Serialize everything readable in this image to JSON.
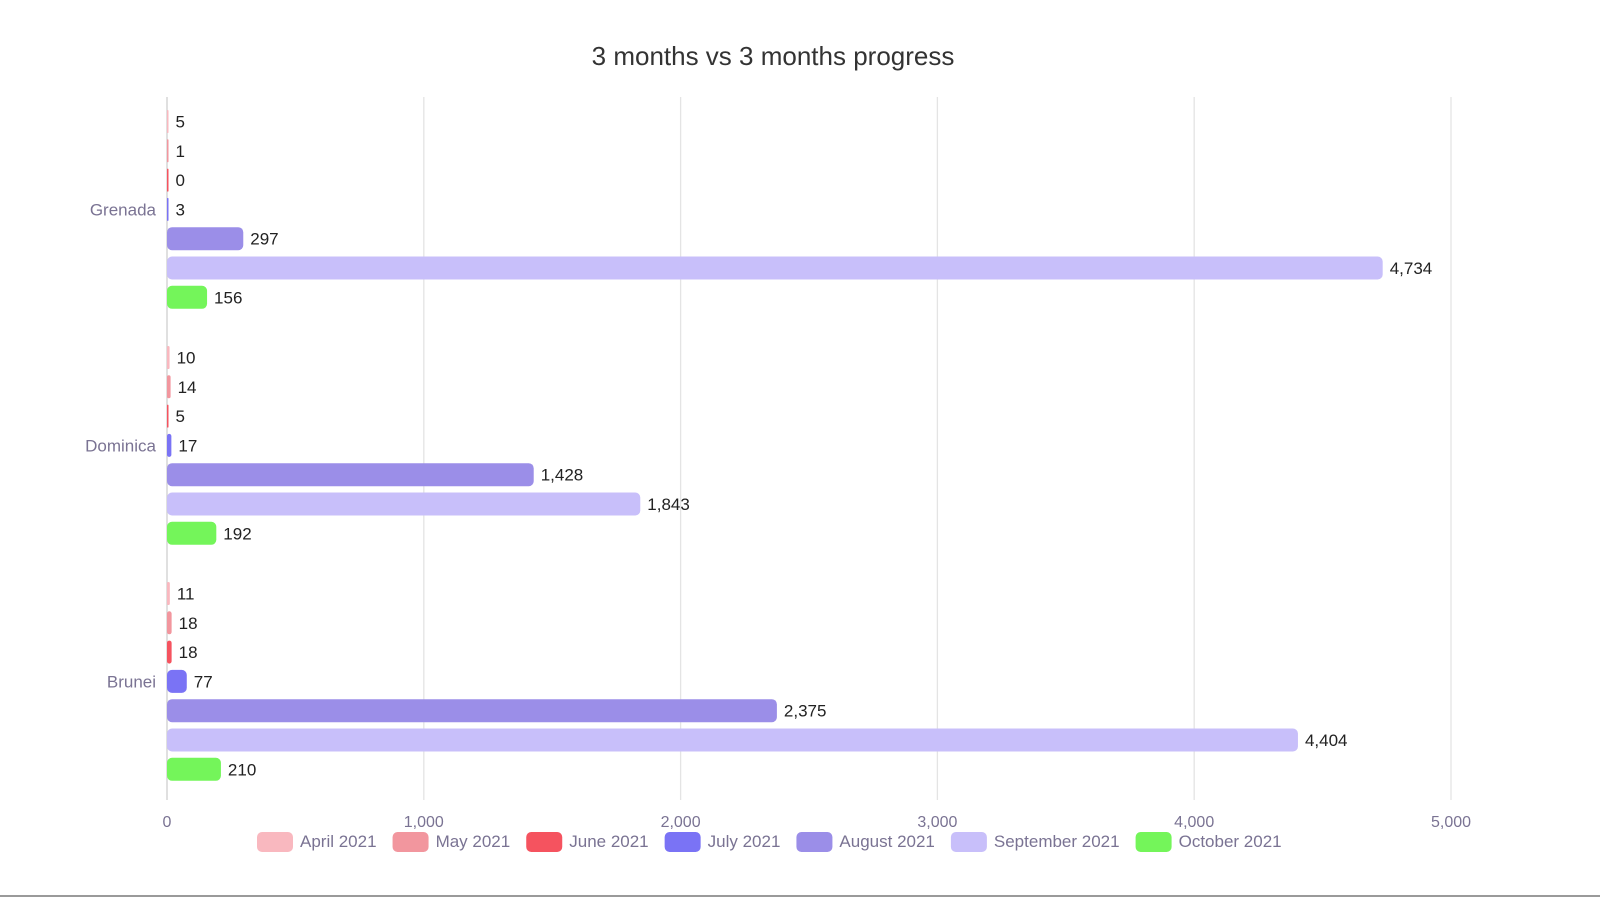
{
  "chart_data": {
    "type": "bar",
    "orientation": "horizontal",
    "title": "3 months vs 3 months progress",
    "xlabel": "",
    "ylabel": "",
    "xlim": [
      0,
      5000
    ],
    "x_ticks": [
      0,
      1000,
      2000,
      3000,
      4000,
      5000
    ],
    "x_tick_labels": [
      "0",
      "1,000",
      "2,000",
      "3,000",
      "4,000",
      "5,000"
    ],
    "grid": true,
    "legend_position": "bottom",
    "categories": [
      "Grenada",
      "Dominica",
      "Brunei"
    ],
    "series": [
      {
        "name": "April 2021",
        "color": "#f9b8bf",
        "values": [
          5,
          10,
          11
        ],
        "labels": [
          "5",
          "10",
          "11"
        ]
      },
      {
        "name": "May 2021",
        "color": "#f2969e",
        "values": [
          1,
          14,
          18
        ],
        "labels": [
          "1",
          "14",
          "18"
        ]
      },
      {
        "name": "June 2021",
        "color": "#f5535f",
        "values": [
          0,
          5,
          18
        ],
        "labels": [
          "0",
          "5",
          "18"
        ]
      },
      {
        "name": "July 2021",
        "color": "#7a73f5",
        "values": [
          3,
          17,
          77
        ],
        "labels": [
          "3",
          "17",
          "77"
        ]
      },
      {
        "name": "August 2021",
        "color": "#9b8ee8",
        "values": [
          297,
          1428,
          2375
        ],
        "labels": [
          "297",
          "1,428",
          "2,375"
        ]
      },
      {
        "name": "September 2021",
        "color": "#c8bffa",
        "values": [
          4734,
          1843,
          4404
        ],
        "labels": [
          "4,734",
          "1,843",
          "4,404"
        ]
      },
      {
        "name": "October 2021",
        "color": "#74f55a",
        "values": [
          156,
          192,
          210
        ],
        "labels": [
          "156",
          "192",
          "210"
        ]
      }
    ]
  }
}
